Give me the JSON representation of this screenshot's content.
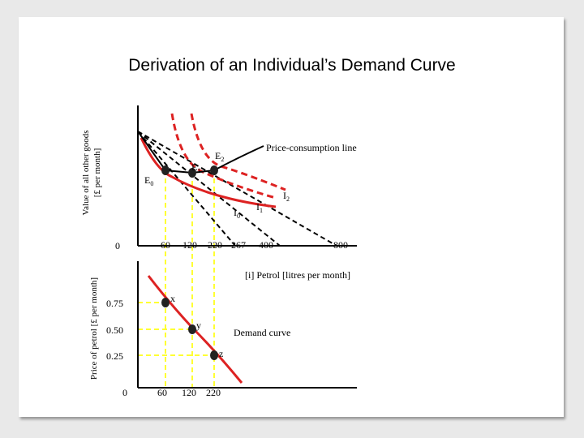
{
  "title": "Derivation of an Individual’s Demand Curve",
  "top_panel": {
    "ylabel_line1": "Value of all other goods",
    "ylabel_line2": "[£ per month]",
    "origin": "0",
    "x_ticks": [
      "60",
      "120",
      "220",
      "267",
      "400",
      "800"
    ],
    "xlabel": "[i] Petrol [litres per month]",
    "pcl_label": "Price-consumption line",
    "equilibria": [
      "E",
      "E",
      "E"
    ],
    "equilibria_sub": [
      "0",
      "1",
      "2"
    ],
    "indifference": [
      "I",
      "I",
      "I"
    ],
    "indifference_sub": [
      "0",
      "1",
      "2"
    ]
  },
  "bottom_panel": {
    "ylabel": "Price of petrol [£ per month]",
    "origin": "0",
    "y_ticks": [
      "0.75",
      "0.50",
      "0.25"
    ],
    "x_ticks": [
      "60",
      "120",
      "220"
    ],
    "points": [
      "x",
      "y",
      "z"
    ],
    "demand_label": "Demand curve"
  },
  "colors": {
    "curve": "#dd2222",
    "guide": "#ffff33",
    "axis": "#000000"
  }
}
